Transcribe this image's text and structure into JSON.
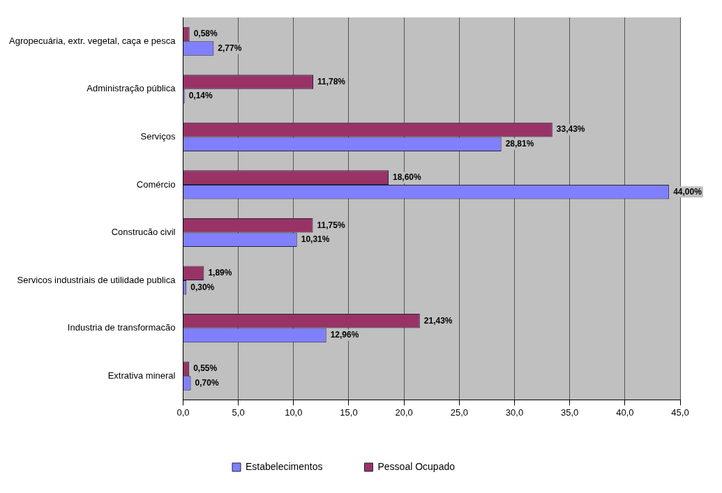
{
  "chart_data": {
    "type": "bar",
    "orientation": "horizontal",
    "categories": [
      "Agropecuária, extr. vegetal, caça e pesca",
      "Administração pública",
      "Serviços",
      "Comércio",
      "Construcão civil",
      "Servicos industriais de utilidade publica",
      "Industria de transformacão",
      "Extrativa mineral"
    ],
    "series": [
      {
        "name": "Estabelecimentos",
        "color": "#8080ff",
        "values": [
          2.77,
          0.14,
          28.81,
          44.0,
          10.31,
          0.3,
          12.96,
          0.7
        ],
        "value_labels": [
          "2,77%",
          "0,14%",
          "28,81%",
          "44,00%",
          "10,31%",
          "0,30%",
          "12,96%",
          "0,70%"
        ]
      },
      {
        "name": "Pessoal Ocupado",
        "color": "#993366",
        "values": [
          0.58,
          11.78,
          33.43,
          18.6,
          11.75,
          1.89,
          21.43,
          0.55
        ],
        "value_labels": [
          "0,58%",
          "11,78%",
          "33,43%",
          "18,60%",
          "11,75%",
          "1,89%",
          "21,43%",
          "0,55%"
        ]
      }
    ],
    "xlim": [
      0,
      45
    ],
    "xticks": [
      {
        "value": 0,
        "label": "0,0"
      },
      {
        "value": 5,
        "label": "5,0"
      },
      {
        "value": 10,
        "label": "10,0"
      },
      {
        "value": 15,
        "label": "15,0"
      },
      {
        "value": 20,
        "label": "20,0"
      },
      {
        "value": 25,
        "label": "25,0"
      },
      {
        "value": 30,
        "label": "30,0"
      },
      {
        "value": 35,
        "label": "35,0"
      },
      {
        "value": 40,
        "label": "40,0"
      },
      {
        "value": 45,
        "label": "45,0"
      }
    ],
    "grid": "x",
    "legend": "bottom"
  }
}
